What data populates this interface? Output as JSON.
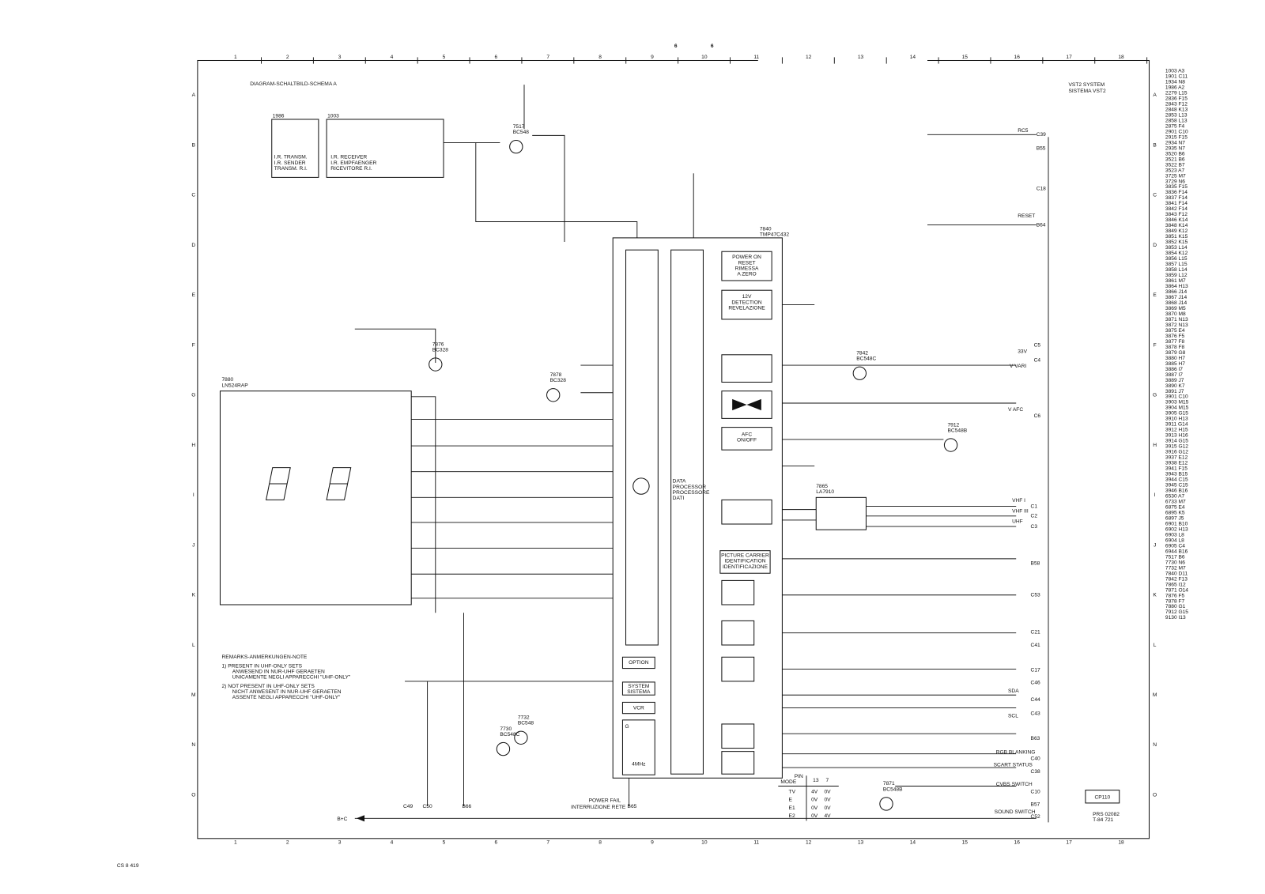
{
  "header": {
    "page_numbers": [
      "6",
      "6"
    ],
    "title": "DIAGRAM-SCHALTBILD-SCHEMA A",
    "system": [
      "VST2 SYSTEM",
      "SISTEMA VST2"
    ]
  },
  "grid": {
    "columns": [
      "1",
      "2",
      "3",
      "4",
      "5",
      "6",
      "7",
      "8",
      "9",
      "10",
      "11",
      "12",
      "13",
      "14",
      "15",
      "16",
      "17",
      "18"
    ],
    "rows": [
      "A",
      "B",
      "C",
      "D",
      "E",
      "F",
      "G",
      "H",
      "I",
      "J",
      "K",
      "L",
      "M",
      "N",
      "O"
    ]
  },
  "blocks": [
    {
      "ref": "1986",
      "lines": [
        "I.R. TRANSM.",
        "I.R. SENDER",
        "TRANSM. R.I."
      ]
    },
    {
      "ref": "1003",
      "lines": [
        "I.R. RECEIVER",
        "I.R. EMPFAENGER",
        "RICEVITORE R.I."
      ]
    },
    {
      "lines": [
        "POWER ON",
        "RESET",
        "RIMESSA",
        "A ZERO"
      ]
    },
    {
      "lines": [
        "12V",
        "DETECTION",
        "REVELAZIONE"
      ]
    },
    {
      "lines": [
        "AFC",
        "ON/OFF"
      ]
    },
    {
      "lines": [
        "PICTURE CARRIER",
        "IDENTIFICATION",
        "IDENTIFICAZIONE"
      ]
    },
    {
      "lines": [
        "DATA",
        "PROCESSOR",
        "PROCESSORE",
        "DATI"
      ]
    },
    {
      "lines": [
        "OPTION"
      ]
    },
    {
      "lines": [
        "SYSTEM",
        "SISTEMA"
      ]
    },
    {
      "lines": [
        "VCR"
      ]
    },
    {
      "ref": "7880",
      "lines": [
        "LN524RAP"
      ]
    },
    {
      "ref": "G",
      "lines": [
        "4MHz"
      ]
    }
  ],
  "components": [
    {
      "ref": "7517",
      "type": "BC548"
    },
    {
      "ref": "7876",
      "type": "BC328"
    },
    {
      "ref": "7878",
      "type": "BC328"
    },
    {
      "ref": "7842",
      "type": "BC548C"
    },
    {
      "ref": "7912",
      "type": "BC548B"
    },
    {
      "ref": "7730",
      "type": "BC548C"
    },
    {
      "ref": "7732",
      "type": "BC548"
    },
    {
      "ref": "7871",
      "type": "BC548B"
    },
    {
      "ref": "7865",
      "type": "LA7910"
    },
    {
      "ref": "7840",
      "type": "TMP47C432"
    }
  ],
  "connectors": [
    "RC5",
    "C39",
    "B55",
    "C18",
    "RESET",
    "B64",
    "C5",
    "C4",
    "C6",
    "C1",
    "C2",
    "C3",
    "B58",
    "C53",
    "C21",
    "C41",
    "C17",
    "C46",
    "C44",
    "C43",
    "B63",
    "C40",
    "C38",
    "C10",
    "B57",
    "C52",
    "C49",
    "C50",
    "B66",
    "B65"
  ],
  "signals": [
    "VHF I",
    "VHF III",
    "UHF",
    "SDA",
    "SCL",
    "RGB BLANKING",
    "SCART STATUS",
    "CVBS SWITCH",
    "SOUND SWITCH",
    "33V",
    "V VARI",
    "V AFC",
    "POWER FAIL",
    "INTERRUZIONE RETE"
  ],
  "remarks": [
    "REMARKS-ANMERKUNGEN-NOTE",
    "1)  PRESENT IN UHF-ONLY SETS",
    "ANWESEND IN NUR-UHF GERAETEN",
    "UNICAMENTE NEGLI APPARECCHI \"UHF-ONLY\"",
    "2)  NOT PRESENT IN UHF-ONLY SETS",
    "NICHT ANWESENT IN NUR-UHF GERAETEN",
    "ASSENTE NEGLI APPARECCHI \"UHF-ONLY\""
  ],
  "pin_table": {
    "header": [
      "PIN",
      "MODE",
      "13",
      "7"
    ],
    "rows": [
      [
        "TV",
        "4V",
        "0V"
      ],
      [
        "E",
        "0V",
        "0V"
      ],
      [
        "E1",
        "0V",
        "0V"
      ],
      [
        "E2",
        "0V",
        "4V"
      ]
    ]
  },
  "parts_index": [
    "1003 A3",
    "1901 C11",
    "1934 N8",
    "1986 A2",
    "2279 L15",
    "2836 F15",
    "2843 F12",
    "2848 K13",
    "2853 L13",
    "2858 L13",
    "2875 F4",
    "2901 C10",
    "2915 F15",
    "2934 N7",
    "2935 N7",
    "3520 B6",
    "3521 B6",
    "3522 B7",
    "3523 A7",
    "3725 M7",
    "3729 N6",
    "3835 F15",
    "3836 F14",
    "3837 F14",
    "3841 F14",
    "3842 F14",
    "3843 F12",
    "3846 K14",
    "3848 K14",
    "3849 K12",
    "3851 K15",
    "3852 K15",
    "3853 L14",
    "3854 K12",
    "3856 L15",
    "3857 L15",
    "3858 L14",
    "3859 L12",
    "3861 M7",
    "3864 H13",
    "3866 J14",
    "3867 J14",
    "3868 J14",
    "3869 M5",
    "3870 M8",
    "3871 N13",
    "3872 N13",
    "3875 E4",
    "3876 F5",
    "3877 F8",
    "3878 F8",
    "3879 G8",
    "3880 H7",
    "3885 H7",
    "3886 I7",
    "3887 I7",
    "3889 J7",
    "3890 K7",
    "3891 J7",
    "3901 C10",
    "3903 M15",
    "3904 M15",
    "3905 G15",
    "3910 H13",
    "3911 G14",
    "3912 H15",
    "3913 H16",
    "3914 G15",
    "3915 G12",
    "3916 G12",
    "3937 E12",
    "3938 E12",
    "3941 F15",
    "3943 B15",
    "3944 C15",
    "3945 C15",
    "3946 B16",
    "6530 A7",
    "6733 M7",
    "6875 E4",
    "6895 K5",
    "6897 J5",
    "6901 B10",
    "6902 H13",
    "6903 L8",
    "6904 L8",
    "6905 C4",
    "6944 B16",
    "7517 B6",
    "7730 N6",
    "7732 M7",
    "7840 D11",
    "7842 F13",
    "7865 I12",
    "7871 O14",
    "7876 F5",
    "7878 F7",
    "7880 G1",
    "7912 G15",
    "9130 I13"
  ],
  "footer": {
    "document": "CS 8 419",
    "board": "CP110",
    "reference": [
      "PRS 02082",
      "T-84 721"
    ],
    "supply": "B+C"
  }
}
